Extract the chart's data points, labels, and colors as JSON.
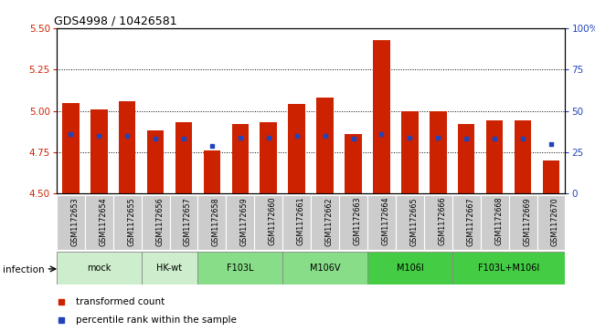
{
  "title": "GDS4998 / 10426581",
  "samples": [
    "GSM1172653",
    "GSM1172654",
    "GSM1172655",
    "GSM1172656",
    "GSM1172657",
    "GSM1172658",
    "GSM1172659",
    "GSM1172660",
    "GSM1172661",
    "GSM1172662",
    "GSM1172663",
    "GSM1172664",
    "GSM1172665",
    "GSM1172666",
    "GSM1172667",
    "GSM1172668",
    "GSM1172669",
    "GSM1172670"
  ],
  "bar_values": [
    5.05,
    5.01,
    5.06,
    4.88,
    4.93,
    4.76,
    4.92,
    4.93,
    5.04,
    5.08,
    4.86,
    5.43,
    5.0,
    5.0,
    4.92,
    4.94,
    4.94,
    4.7
  ],
  "blue_values": [
    4.86,
    4.85,
    4.85,
    4.83,
    4.83,
    4.79,
    4.84,
    4.84,
    4.85,
    4.85,
    4.83,
    4.86,
    4.84,
    4.84,
    4.83,
    4.83,
    4.83,
    4.8
  ],
  "ylim_left": [
    4.5,
    5.5
  ],
  "ylim_right": [
    0,
    100
  ],
  "yticks_left": [
    4.5,
    4.75,
    5.0,
    5.25,
    5.5
  ],
  "yticks_right": [
    0,
    25,
    50,
    75,
    100
  ],
  "groups": [
    {
      "label": "mock",
      "color": "#cceecc",
      "indices": [
        0,
        1,
        2
      ]
    },
    {
      "label": "HK-wt",
      "color": "#cceecc",
      "indices": [
        3,
        4
      ]
    },
    {
      "label": "F103L",
      "color": "#88dd88",
      "indices": [
        5,
        6,
        7
      ]
    },
    {
      "label": "M106V",
      "color": "#88dd88",
      "indices": [
        8,
        9,
        10
      ]
    },
    {
      "label": "M106I",
      "color": "#44cc44",
      "indices": [
        11,
        12,
        13
      ]
    },
    {
      "label": "F103L+M106I",
      "color": "#44cc44",
      "indices": [
        14,
        15,
        16,
        17
      ]
    }
  ],
  "bar_color": "#cc2200",
  "blue_color": "#2244bb",
  "base": 4.5,
  "infection_label": "infection",
  "legend_items": [
    "transformed count",
    "percentile rank within the sample"
  ],
  "sample_bg_color": "#cccccc",
  "bar_width": 0.6
}
